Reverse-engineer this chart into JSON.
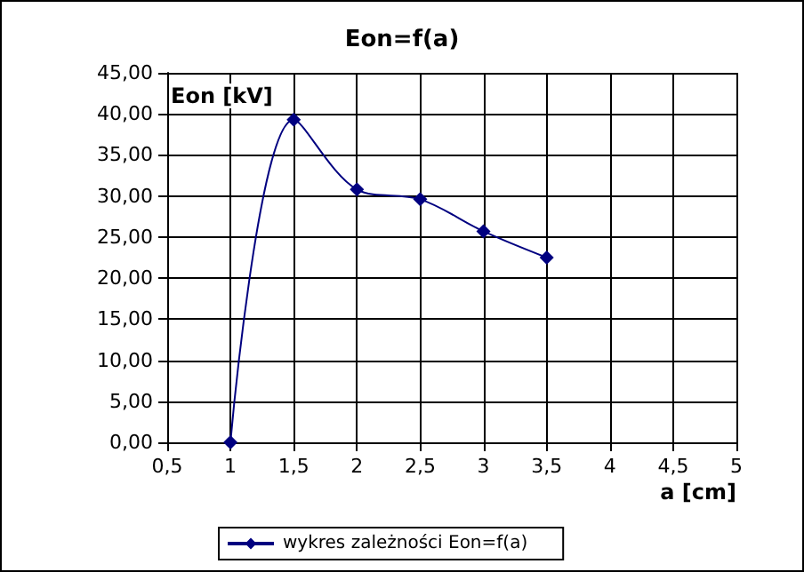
{
  "chart_data": {
    "type": "line",
    "title": "Eon=f(a)",
    "xlabel": "a [cm]",
    "ylabel": "Eon [kV]",
    "x": [
      1,
      1.5,
      2,
      2.5,
      3,
      3.5
    ],
    "series": [
      {
        "name": "wykres zależności Eon=f(a)",
        "color": "#000080",
        "values": [
          0,
          39.3,
          30.8,
          29.6,
          25.7,
          22.5
        ]
      }
    ],
    "xlim": [
      0.5,
      5
    ],
    "xticks": [
      {
        "value": 0.5,
        "label": "0,5"
      },
      1,
      {
        "value": 1.5,
        "label": "1,5"
      },
      2,
      {
        "value": 2.5,
        "label": "2,5"
      },
      3,
      {
        "value": 3.5,
        "label": "3,5"
      },
      4,
      {
        "value": 4.5,
        "label": "4,5"
      },
      5
    ],
    "ylim": [
      0,
      45
    ],
    "yticks": [
      {
        "value": 0,
        "label": "0,00"
      },
      {
        "value": 5,
        "label": "5,00"
      },
      {
        "value": 10,
        "label": "10,00"
      },
      {
        "value": 15,
        "label": "15,00"
      },
      {
        "value": 20,
        "label": "20,00"
      },
      {
        "value": 25,
        "label": "25,00"
      },
      {
        "value": 30,
        "label": "30,00"
      },
      {
        "value": 35,
        "label": "35,00"
      },
      {
        "value": 40,
        "label": "40,00"
      },
      {
        "value": 45,
        "label": "45,00"
      }
    ],
    "grid": true,
    "legend": "bottom left",
    "marker": "diamond",
    "line_style": "solid"
  }
}
